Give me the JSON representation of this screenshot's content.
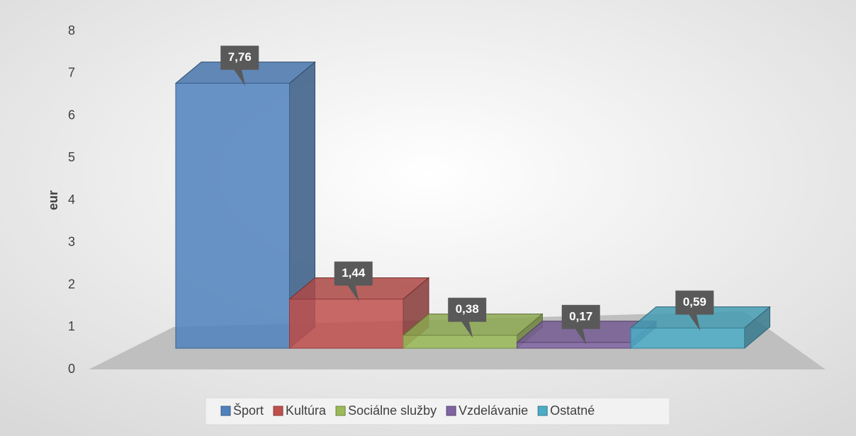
{
  "chart_data": {
    "type": "bar3d",
    "y_axis_label": "eur",
    "categories": [
      "Šport",
      "Kultúra",
      "Sociálne služby",
      "Vzdelávanie",
      "Ostatné"
    ],
    "values": [
      7.76,
      1.44,
      0.38,
      0.17,
      0.59
    ],
    "value_labels": [
      "7,76",
      "1,44",
      "0,38",
      "0,17",
      "0,59"
    ],
    "colors": [
      "#4f81bd",
      "#c0504d",
      "#9bbb59",
      "#8064a2",
      "#4bacc6"
    ],
    "ylim": [
      0,
      8
    ],
    "yticks": [
      0,
      1,
      2,
      3,
      4,
      5,
      6,
      7,
      8
    ],
    "legend": "bottom"
  }
}
